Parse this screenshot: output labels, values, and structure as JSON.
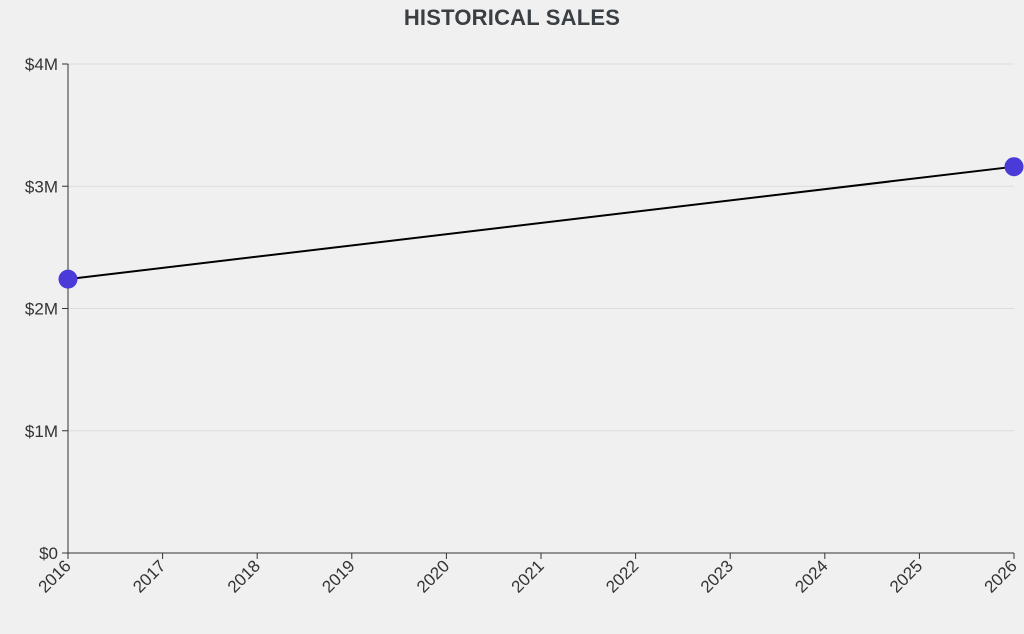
{
  "chart_data": {
    "type": "line",
    "title": "HISTORICAL SALES",
    "xlabel": "",
    "ylabel": "",
    "x": [
      2016,
      2026
    ],
    "series": [
      {
        "values": [
          2240000,
          3160000
        ]
      }
    ],
    "xlim": [
      2016,
      2026
    ],
    "ylim": [
      0,
      4000000
    ],
    "xticks": [
      "2016",
      "2017",
      "2018",
      "2019",
      "2020",
      "2021",
      "2022",
      "2023",
      "2024",
      "2025",
      "2026"
    ],
    "yticks": [
      {
        "value": 0,
        "label": "$0"
      },
      {
        "value": 1000000,
        "label": "$1M"
      },
      {
        "value": 2000000,
        "label": "$2M"
      },
      {
        "value": 3000000,
        "label": "$3M"
      },
      {
        "value": 4000000,
        "label": "$4M"
      }
    ],
    "grid": true,
    "line_color": "#000000",
    "marker_color": "#4a3bd9",
    "grid_color": "#dcdcdc",
    "axis_color": "#333333"
  }
}
